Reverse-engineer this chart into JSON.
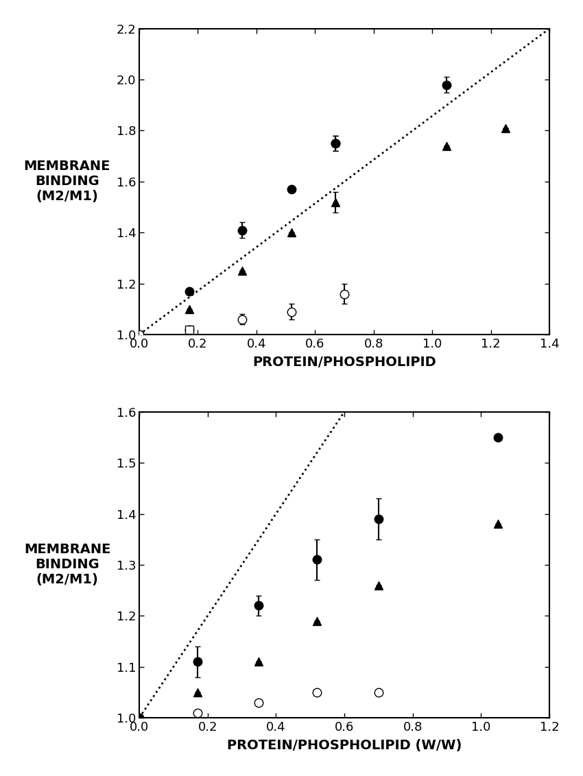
{
  "top": {
    "xlabel": "PROTEIN/PHOSPHOLIPID",
    "ylabel": "MEMBRANE\nBINDING\n(M2/M1)",
    "xlim": [
      0,
      1.4
    ],
    "ylim": [
      1.0,
      2.2
    ],
    "xticks": [
      0,
      0.2,
      0.4,
      0.6,
      0.8,
      1.0,
      1.2,
      1.4
    ],
    "yticks": [
      1.0,
      1.2,
      1.4,
      1.6,
      1.8,
      2.0,
      2.2
    ],
    "dotted_line": [
      [
        0,
        1.0
      ],
      [
        1.4,
        2.2
      ]
    ],
    "filled_circle": {
      "x": [
        0.0,
        0.17,
        0.35,
        0.52,
        0.67,
        0.67,
        1.05
      ],
      "y": [
        1.0,
        1.17,
        1.41,
        1.57,
        1.75,
        1.75,
        1.98
      ],
      "yerr": [
        0.0,
        0.0,
        0.03,
        0.0,
        0.03,
        0.03,
        0.03
      ]
    },
    "filled_triangle": {
      "x": [
        0.17,
        0.35,
        0.52,
        0.67,
        1.05,
        1.25
      ],
      "y": [
        1.1,
        1.25,
        1.4,
        1.52,
        1.74,
        1.81
      ],
      "yerr": [
        0.0,
        0.0,
        0.0,
        0.04,
        0.0,
        0.0
      ]
    },
    "open_circle": {
      "x": [
        0.0,
        0.17,
        0.35,
        0.52,
        0.7
      ],
      "y": [
        1.0,
        1.02,
        1.06,
        1.09,
        1.16
      ],
      "yerr": [
        0.0,
        0.0,
        0.02,
        0.03,
        0.04
      ]
    },
    "open_square": {
      "x": [
        0.17
      ],
      "y": [
        1.02
      ],
      "yerr": [
        0.0
      ]
    }
  },
  "bottom": {
    "xlabel": "PROTEIN/PHOSPHOLIPID (W/W)",
    "ylabel": "MEMBRANE\nBINDING\n(M2/M1)",
    "xlim": [
      0,
      1.2
    ],
    "ylim": [
      1.0,
      1.6
    ],
    "xticks": [
      0,
      0.2,
      0.4,
      0.6,
      0.8,
      1.0,
      1.2
    ],
    "yticks": [
      1.0,
      1.1,
      1.2,
      1.3,
      1.4,
      1.5,
      1.6
    ],
    "dotted_line": [
      [
        0,
        1.0
      ],
      [
        0.6,
        1.6
      ]
    ],
    "filled_circle": {
      "x": [
        0.0,
        0.17,
        0.35,
        0.52,
        0.7,
        1.05
      ],
      "y": [
        1.0,
        1.11,
        1.22,
        1.31,
        1.39,
        1.55
      ],
      "yerr": [
        0.0,
        0.03,
        0.02,
        0.04,
        0.04,
        0.0
      ]
    },
    "filled_triangle": {
      "x": [
        0.17,
        0.35,
        0.52,
        0.7,
        1.05
      ],
      "y": [
        1.05,
        1.11,
        1.19,
        1.26,
        1.38
      ],
      "yerr": [
        0.0,
        0.0,
        0.0,
        0.0,
        0.0
      ]
    },
    "open_circle": {
      "x": [
        0.17,
        0.35,
        0.52,
        0.7
      ],
      "y": [
        1.01,
        1.03,
        1.05,
        1.05
      ],
      "yerr": [
        0.0,
        0.0,
        0.0,
        0.0
      ]
    }
  },
  "marker_size": 9,
  "capsize": 3,
  "linewidth": 1.5,
  "font_size_label": 14,
  "font_size_tick": 13
}
